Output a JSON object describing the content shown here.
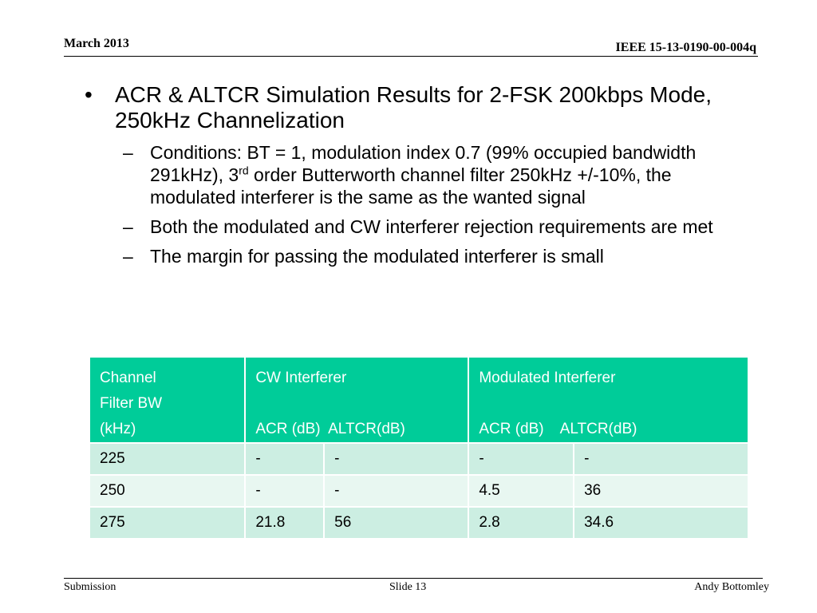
{
  "header": {
    "date": "March 2013",
    "doc_id": "IEEE 15-13-0190-00-004q"
  },
  "bullets": {
    "main": {
      "mark": "•",
      "text": "ACR & ALTCR Simulation Results for 2-FSK 200kbps Mode, 250kHz Channelization"
    },
    "sub_mark": "–",
    "conditions": {
      "before_sup": "Conditions: BT = 1, modulation index 0.7 (99% occupied bandwidth 291kHz), 3",
      "sup": "rd",
      "after_sup": " order Butterworth channel filter 250kHz +/-10%, the modulated interferer is the same as the wanted signal"
    },
    "met": "Both the modulated and CW interferer rejection requirements are met",
    "margin": "The margin for passing the modulated interferer is small"
  },
  "table": {
    "header": {
      "col1_line1": "Channel",
      "col1_line2": "Filter BW",
      "col1_line3": "(kHz)",
      "cw_title": "CW Interferer",
      "cw_sub": "ACR (dB)  ALTCR(dB)",
      "mod_title": "Modulated Interferer",
      "mod_sub": "ACR (dB)    ALTCR(dB)"
    },
    "rows": [
      {
        "bw": "225",
        "cw_acr": "-",
        "cw_altcr": "-",
        "mod_acr": "-",
        "mod_altcr": "-"
      },
      {
        "bw": "250",
        "cw_acr": "-",
        "cw_altcr": "-",
        "mod_acr": "4.5",
        "mod_altcr": "36"
      },
      {
        "bw": "275",
        "cw_acr": "21.8",
        "cw_altcr": "56",
        "mod_acr": "2.8",
        "mod_altcr": "34.6"
      }
    ]
  },
  "footer": {
    "left": "Submission",
    "center": "Slide 13",
    "right": "Andy Bottomley"
  },
  "colors": {
    "table_header": "#00cc99",
    "row_dark": "#cceee2",
    "row_light": "#e8f7f1"
  }
}
